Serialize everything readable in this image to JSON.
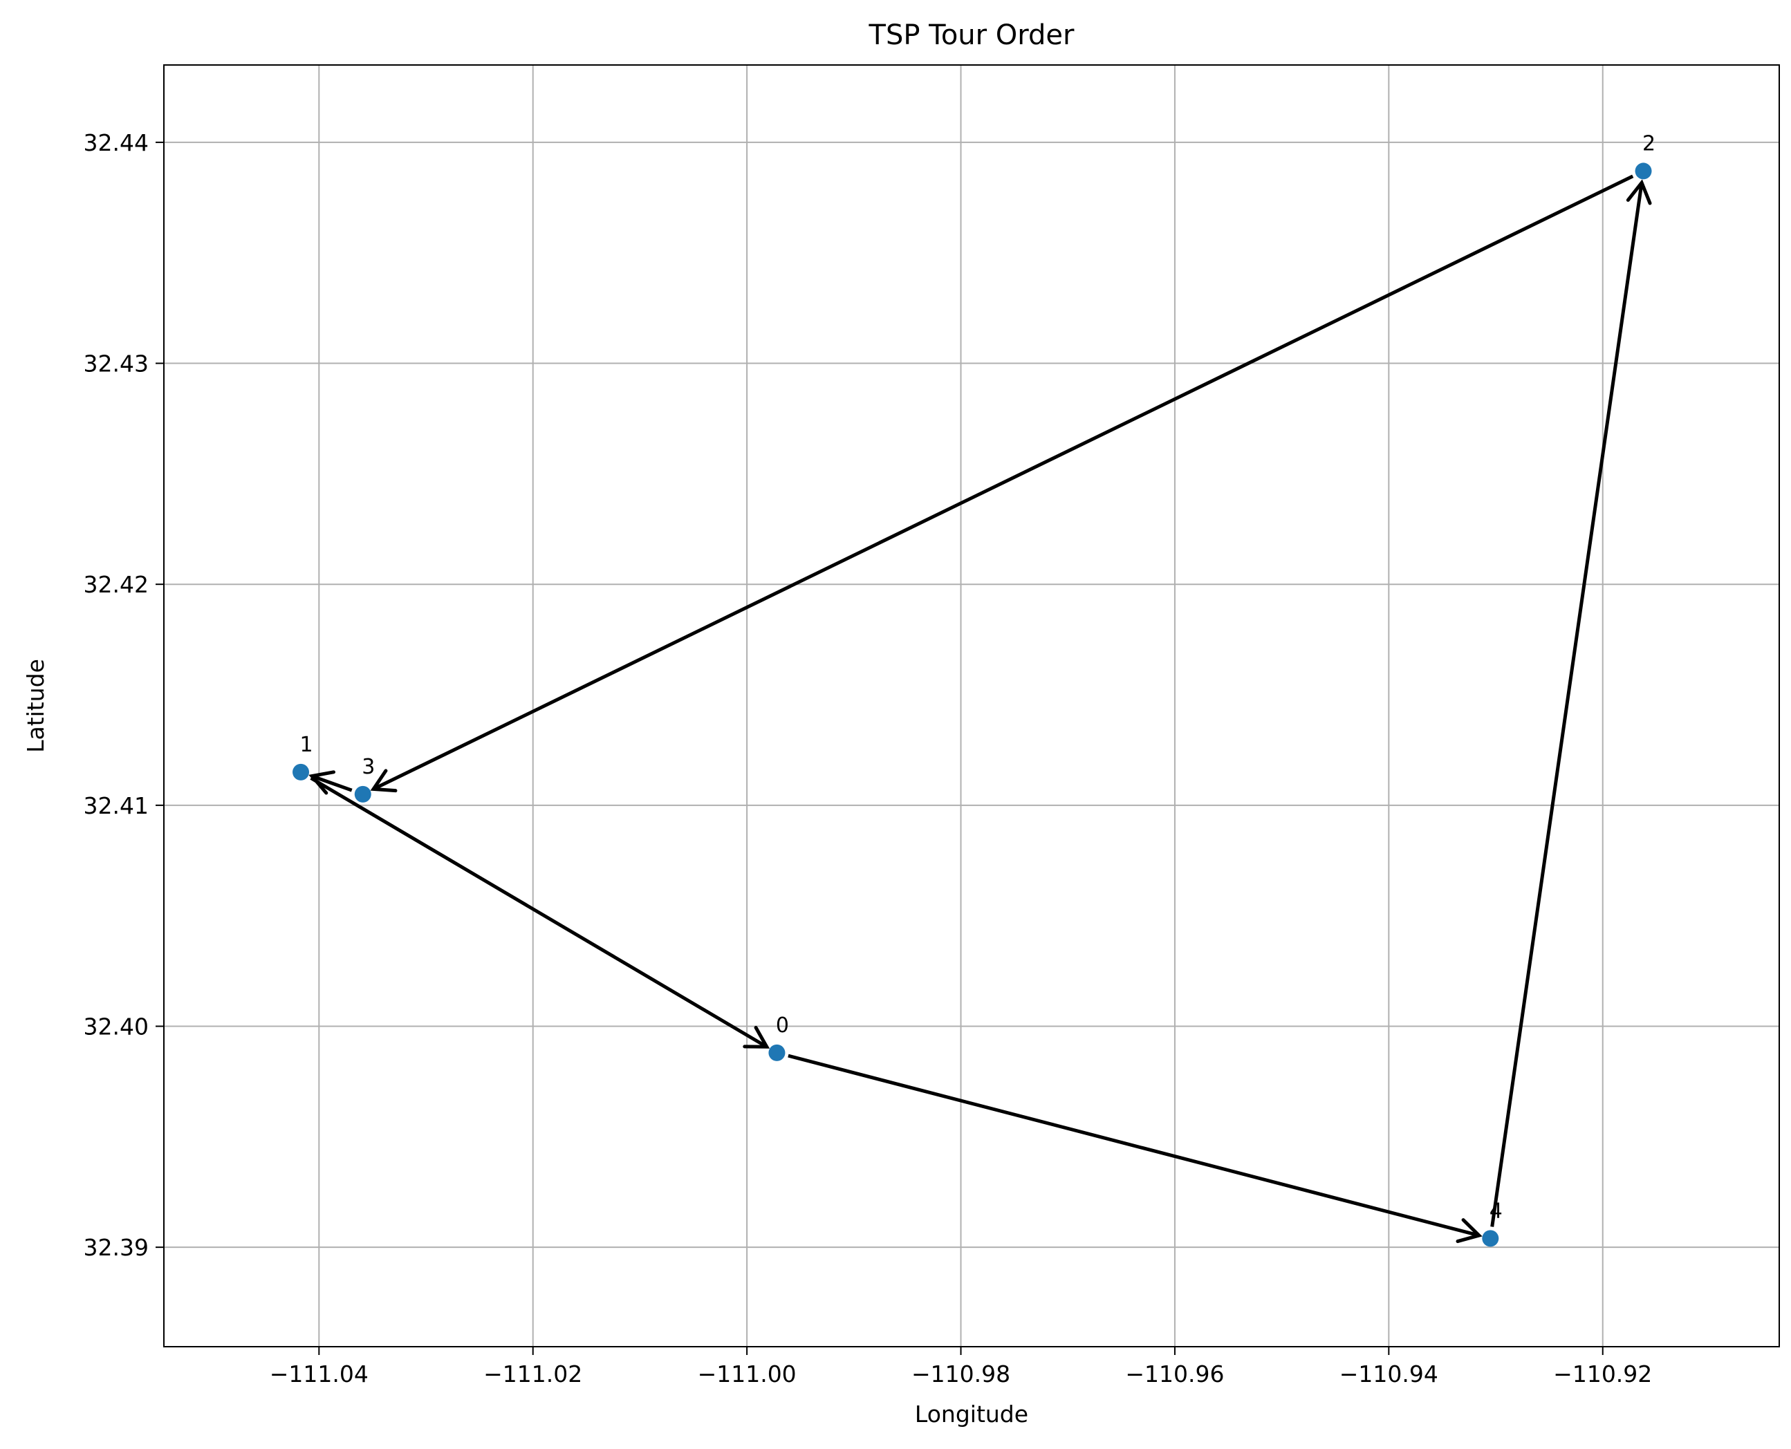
{
  "chart_data": {
    "type": "scatter",
    "title": "TSP Tour Order",
    "xlabel": "Longitude",
    "ylabel": "Latitude",
    "xlim": [
      -111.0545,
      -110.9035
    ],
    "ylim": [
      32.3855,
      32.4435
    ],
    "x_ticks": [
      -111.04,
      -111.02,
      -111.0,
      -110.98,
      -110.96,
      -110.94,
      -110.92
    ],
    "x_tick_labels": [
      "−111.04",
      "−111.02",
      "−111.00",
      "−110.98",
      "−110.96",
      "−110.94",
      "−110.92"
    ],
    "y_ticks": [
      32.39,
      32.4,
      32.41,
      32.42,
      32.43,
      32.44
    ],
    "y_tick_labels": [
      "32.39",
      "32.40",
      "32.41",
      "32.42",
      "32.43",
      "32.44"
    ],
    "grid": true,
    "points": [
      {
        "label": "0",
        "x": -110.9972,
        "y": 32.3988
      },
      {
        "label": "1",
        "x": -111.0417,
        "y": 32.4115
      },
      {
        "label": "2",
        "x": -110.9162,
        "y": 32.4387
      },
      {
        "label": "3",
        "x": -111.0359,
        "y": 32.4105
      },
      {
        "label": "4",
        "x": -110.9305,
        "y": 32.3904
      }
    ],
    "tour": [
      "0",
      "4",
      "2",
      "3",
      "1",
      "0"
    ],
    "colors": {
      "point": "#1f77b4",
      "arrow": "#000000",
      "grid": "#b0b0b0"
    }
  }
}
